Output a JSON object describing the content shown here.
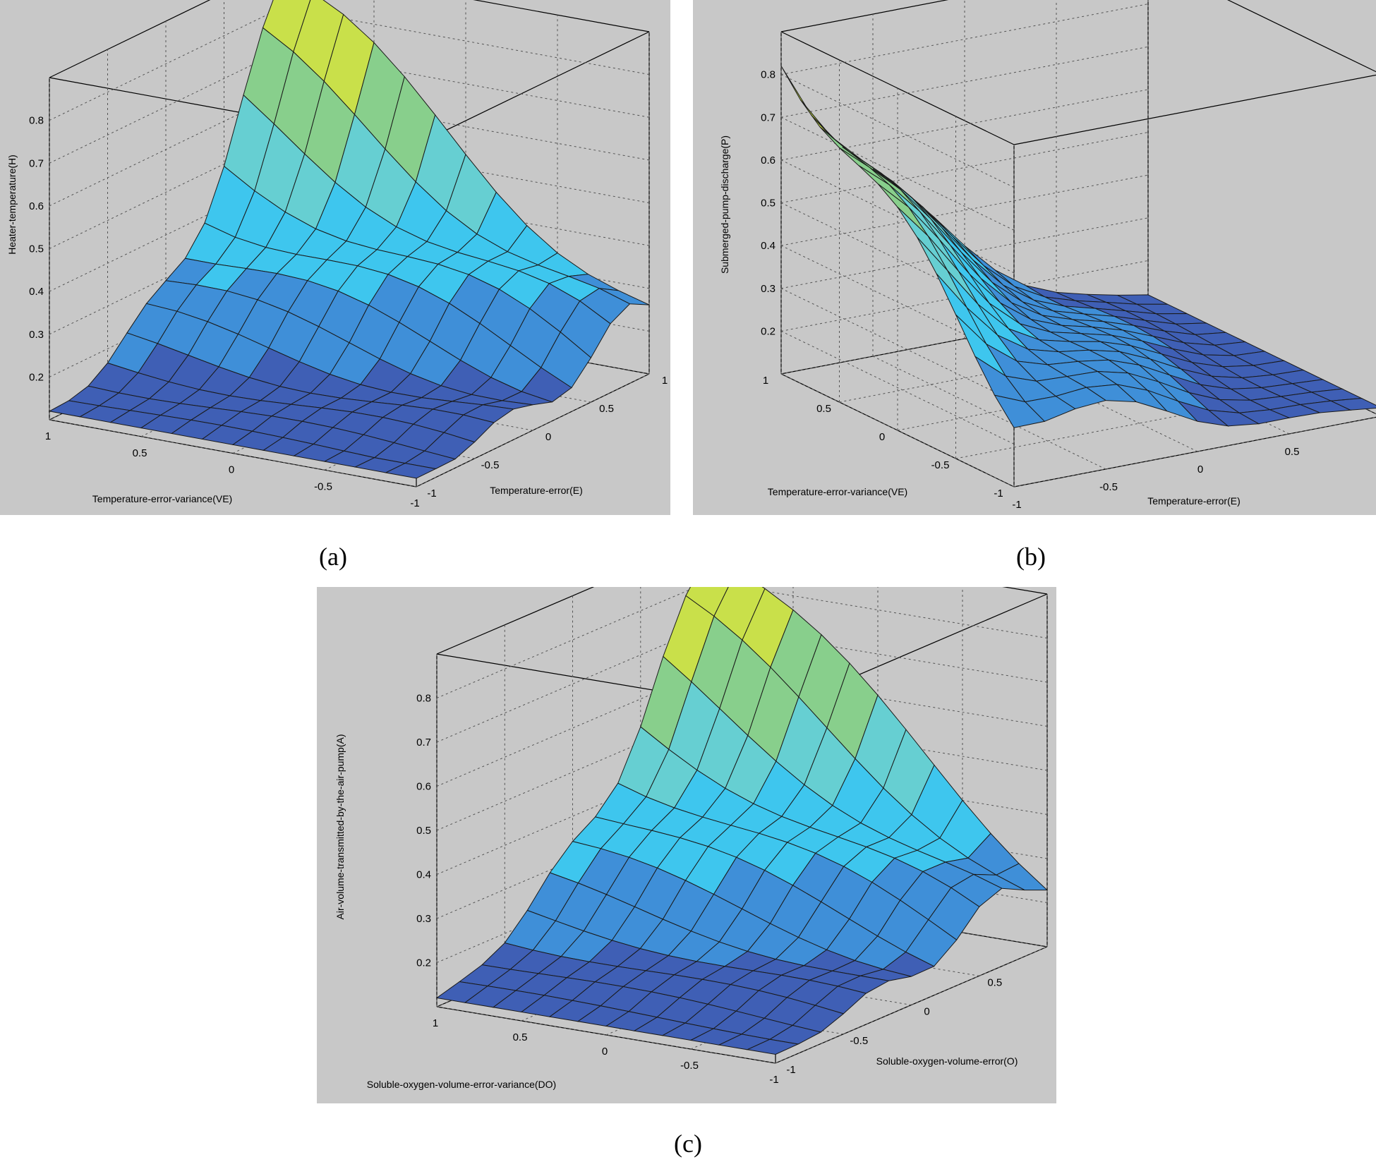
{
  "chart_data": [
    {
      "type": "surface3d",
      "panel": "a",
      "caption": "(a)",
      "xlabel": "Temperature-error(E)",
      "ylabel": "Temperature-error-variance(VE)",
      "zlabel": "Heater-temperature(H)",
      "xlim": [
        -1,
        1
      ],
      "ylim": [
        -1,
        1
      ],
      "zlim": [
        0.1,
        0.9
      ],
      "xticks": [
        "-1",
        "-0.5",
        "0",
        "0.5",
        "1"
      ],
      "yticks": [
        "-1",
        "-0.5",
        "0",
        "0.5",
        "1"
      ],
      "zticks": [
        "0.2",
        "0.3",
        "0.4",
        "0.5",
        "0.6",
        "0.7",
        "0.8"
      ],
      "grid": true,
      "colormap": [
        "#3f5fb5",
        "#3f8fd8",
        "#3ec6ee",
        "#66cfd2",
        "#88cf8c",
        "#c9e04a",
        "#f2ef30"
      ],
      "grid_resolution": 13,
      "z_min": 0.12,
      "z_max": 0.88,
      "description_values": {
        "corner_E1_VE1": 0.88,
        "corner_Em1_VEm1": 0.12,
        "plateau_VE1": 0.5
      }
    },
    {
      "type": "surface3d",
      "panel": "b",
      "caption": "(b)",
      "xlabel": "Temperature-error(E)",
      "ylabel": "Temperature-error-variance(VE)",
      "zlabel": "Submerged-pump-discharge(P)",
      "xlim": [
        -1,
        1
      ],
      "ylim": [
        -1,
        1
      ],
      "zlim": [
        0.1,
        0.9
      ],
      "xticks": [
        "-1",
        "-0.5",
        "0",
        "0.5",
        "1"
      ],
      "yticks": [
        "-1",
        "-0.5",
        "0",
        "0.5",
        "1"
      ],
      "zticks": [
        "0.2",
        "0.3",
        "0.4",
        "0.5",
        "0.6",
        "0.7",
        "0.8"
      ],
      "grid": true,
      "colormap": [
        "#3f5fb5",
        "#3f8fd8",
        "#3ec6ee",
        "#66cfd2",
        "#88cf8c",
        "#c9e04a",
        "#f2ef30"
      ],
      "grid_resolution": 13,
      "z_min": 0.12,
      "z_max": 0.88,
      "description_values": {
        "corner_Em1_VE1": 0.88,
        "corner_E1_VEm1": 0.12
      }
    },
    {
      "type": "surface3d",
      "panel": "c",
      "caption": "(c)",
      "xlabel": "Soluble-oxygen-volume-error(O)",
      "ylabel": "Soluble-oxygen-volume-error-variance(DO)",
      "zlabel": "Air-volume-transmitted-by-the-air-pump(A)",
      "xlim": [
        -1,
        1
      ],
      "ylim": [
        -1,
        1
      ],
      "zlim": [
        0.1,
        0.9
      ],
      "xticks": [
        "-1",
        "-0.5",
        "0",
        "0.5",
        "1"
      ],
      "yticks": [
        "-1",
        "-0.5",
        "0",
        "0.5",
        "1"
      ],
      "zticks": [
        "0.2",
        "0.3",
        "0.4",
        "0.5",
        "0.6",
        "0.7",
        "0.8"
      ],
      "grid": true,
      "colormap": [
        "#3f5fb5",
        "#3f8fd8",
        "#3ec6ee",
        "#66cfd2",
        "#88cf8c",
        "#c9e04a",
        "#f2ef30"
      ],
      "grid_resolution": 13,
      "z_min": 0.12,
      "z_max": 0.88,
      "description_values": {
        "corner_O1_DO1": 0.88,
        "corner_Om1_DOm1": 0.12
      }
    }
  ]
}
